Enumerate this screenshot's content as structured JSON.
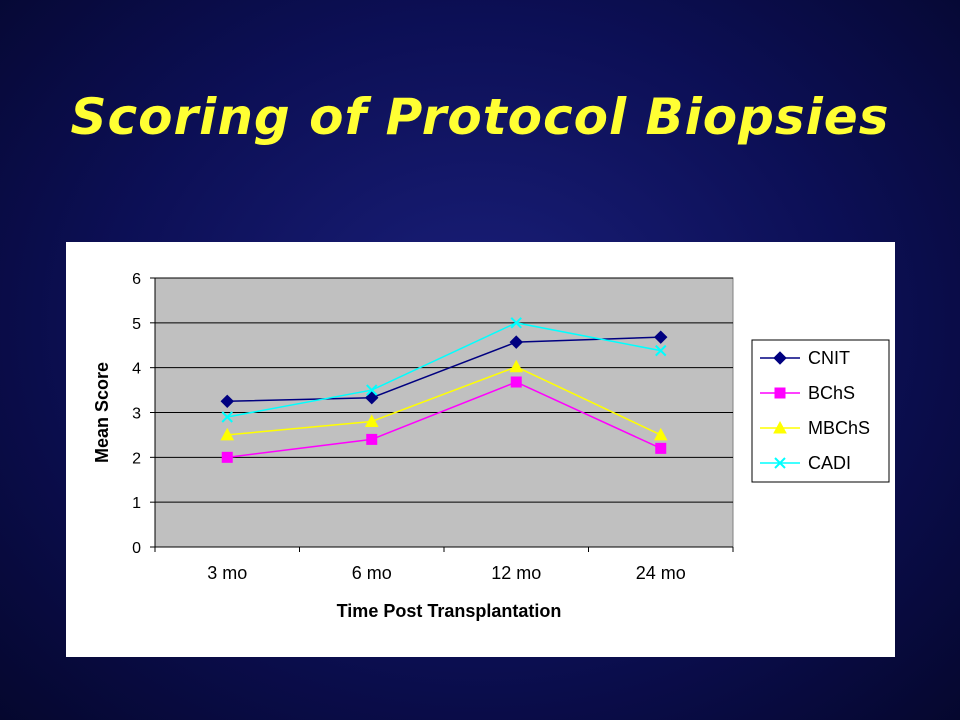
{
  "slide": {
    "title": "Scoring of Protocol Biopsies"
  },
  "chart_data": {
    "type": "line",
    "categories": [
      "3 mo",
      "6 mo",
      "12 mo",
      "24 mo"
    ],
    "xlabel": "Time Post Transplantation",
    "ylabel": "Mean Score",
    "ylim": [
      0,
      6
    ],
    "yticks": [
      0,
      1,
      2,
      3,
      4,
      5,
      6
    ],
    "grid": true,
    "legend": "right",
    "plot_background": "#c0c0c0",
    "series": [
      {
        "name": "CNIT",
        "values": [
          3.25,
          3.33,
          4.57,
          4.68
        ],
        "color": "#000080",
        "marker": "diamond"
      },
      {
        "name": "BChS",
        "values": [
          2.0,
          2.4,
          3.68,
          2.2
        ],
        "color": "#ff00ff",
        "marker": "square"
      },
      {
        "name": "MBChS",
        "values": [
          2.5,
          2.8,
          4.02,
          2.5
        ],
        "color": "#ffff00",
        "marker": "triangle"
      },
      {
        "name": "CADI",
        "values": [
          2.9,
          3.5,
          5.0,
          4.38
        ],
        "color": "#00ffff",
        "marker": "x"
      }
    ]
  }
}
